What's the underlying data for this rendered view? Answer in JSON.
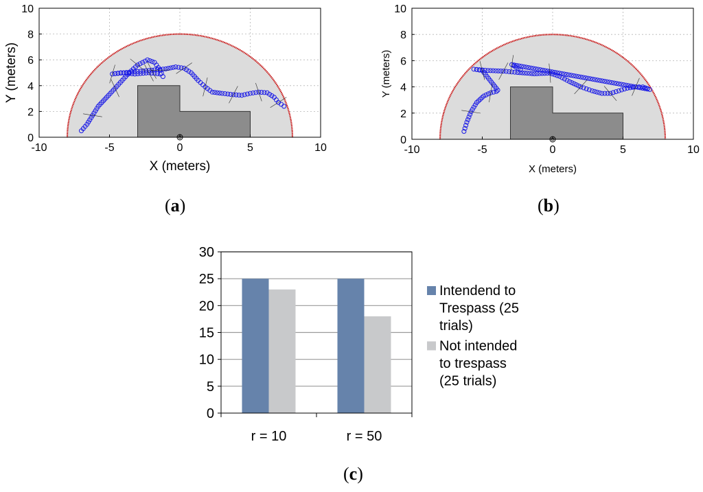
{
  "chart_data": [
    {
      "type": "scatter",
      "panel_label": "a",
      "xlabel": "X (meters)",
      "ylabel": "Y (meters)",
      "xlim": [
        -10,
        10
      ],
      "ylim": [
        0,
        10
      ],
      "x_ticks": [
        -10,
        -5,
        0,
        5,
        10
      ],
      "y_ticks": [
        0,
        2,
        4,
        6,
        8,
        10
      ],
      "grid": true,
      "sensing_radius": 8,
      "obstacle": [
        [
          -3,
          0
        ],
        [
          -3,
          4
        ],
        [
          0,
          4
        ],
        [
          0,
          2
        ],
        [
          5,
          2
        ],
        [
          5,
          0
        ]
      ],
      "sensor": [
        0,
        0
      ],
      "trajectory": [
        [
          -7.0,
          0.5
        ],
        [
          -6.6,
          1.0
        ],
        [
          -6.2,
          1.7
        ],
        [
          -5.8,
          2.4
        ],
        [
          -5.2,
          3.1
        ],
        [
          -4.6,
          3.8
        ],
        [
          -4.1,
          4.4
        ],
        [
          -3.6,
          5.0
        ],
        [
          -3.0,
          5.6
        ],
        [
          -2.3,
          6.0
        ],
        [
          -1.8,
          5.8
        ],
        [
          -1.4,
          5.2
        ],
        [
          -1.2,
          4.7
        ],
        [
          -1.4,
          4.9
        ],
        [
          -2.2,
          5.0
        ],
        [
          -3.2,
          4.9
        ],
        [
          -4.2,
          5.0
        ],
        [
          -4.8,
          4.9
        ],
        [
          -4.0,
          5.0
        ],
        [
          -3.0,
          5.1
        ],
        [
          -2.0,
          5.2
        ],
        [
          -1.0,
          5.3
        ],
        [
          -0.3,
          5.45
        ],
        [
          0.3,
          5.35
        ],
        [
          0.8,
          5.0
        ],
        [
          1.3,
          4.4
        ],
        [
          1.8,
          3.9
        ],
        [
          2.3,
          3.5
        ],
        [
          3.0,
          3.4
        ],
        [
          3.8,
          3.3
        ],
        [
          4.4,
          3.25
        ],
        [
          5.0,
          3.4
        ],
        [
          5.6,
          3.5
        ],
        [
          6.2,
          3.45
        ],
        [
          6.7,
          3.1
        ],
        [
          7.0,
          2.7
        ],
        [
          7.4,
          2.4
        ]
      ]
    },
    {
      "type": "scatter",
      "panel_label": "b",
      "xlabel": "X (meters)",
      "ylabel": "Y (meters)",
      "xlim": [
        -10,
        10
      ],
      "ylim": [
        0,
        10
      ],
      "x_ticks": [
        -10,
        -5,
        0,
        5,
        10
      ],
      "y_ticks": [
        0,
        2,
        4,
        6,
        8,
        10
      ],
      "grid": true,
      "sensing_radius": 8,
      "obstacle": [
        [
          -3,
          0
        ],
        [
          -3,
          4
        ],
        [
          0,
          4
        ],
        [
          0,
          2
        ],
        [
          5,
          2
        ],
        [
          5,
          0
        ]
      ],
      "sensor": [
        0,
        0
      ],
      "trajectory": [
        [
          -6.3,
          0.6
        ],
        [
          -6.1,
          1.3
        ],
        [
          -5.8,
          2.1
        ],
        [
          -5.4,
          2.8
        ],
        [
          -4.9,
          3.3
        ],
        [
          -4.4,
          3.55
        ],
        [
          -4.0,
          3.65
        ],
        [
          -3.9,
          3.75
        ],
        [
          -5.0,
          5.25
        ],
        [
          -5.6,
          5.35
        ],
        [
          -4.6,
          5.25
        ],
        [
          -3.5,
          5.2
        ],
        [
          -2.5,
          5.1
        ],
        [
          -1.3,
          5.0
        ],
        [
          -0.2,
          5.05
        ],
        [
          0.5,
          4.8
        ],
        [
          1.2,
          4.4
        ],
        [
          2.0,
          4.0
        ],
        [
          2.8,
          3.7
        ],
        [
          3.5,
          3.5
        ],
        [
          4.1,
          3.5
        ],
        [
          4.7,
          3.7
        ],
        [
          5.3,
          3.9
        ],
        [
          5.9,
          4.0
        ],
        [
          6.4,
          4.0
        ],
        [
          6.9,
          3.8
        ],
        [
          -2.9,
          5.7
        ],
        [
          -2.3,
          5.3
        ]
      ]
    },
    {
      "type": "bar",
      "panel_label": "c",
      "categories": [
        "r = 10",
        "r = 50"
      ],
      "ylim": [
        0,
        30
      ],
      "y_ticks": [
        0,
        5,
        10,
        15,
        20,
        25,
        30
      ],
      "grid": true,
      "legend_position": "right",
      "series": [
        {
          "name": "Intendend to Trespass (25 trials)",
          "legend_lines": [
            "Intendend to",
            "Trespass (25",
            "trials)"
          ],
          "color": "#6683ab",
          "values": [
            25,
            25
          ]
        },
        {
          "name": "Not intended to trespass (25 trials)",
          "legend_lines": [
            "Not intended",
            "to trespass",
            "(25 trials)"
          ],
          "color": "#c8c9cb",
          "values": [
            23,
            18
          ]
        }
      ]
    }
  ],
  "colors": {
    "region_fill": "#dcdcdc",
    "boundary": "#c81414",
    "obstacle": "#8c8c8c",
    "trajectory": "#1a1ae6",
    "grid": "#b4b4b4"
  }
}
